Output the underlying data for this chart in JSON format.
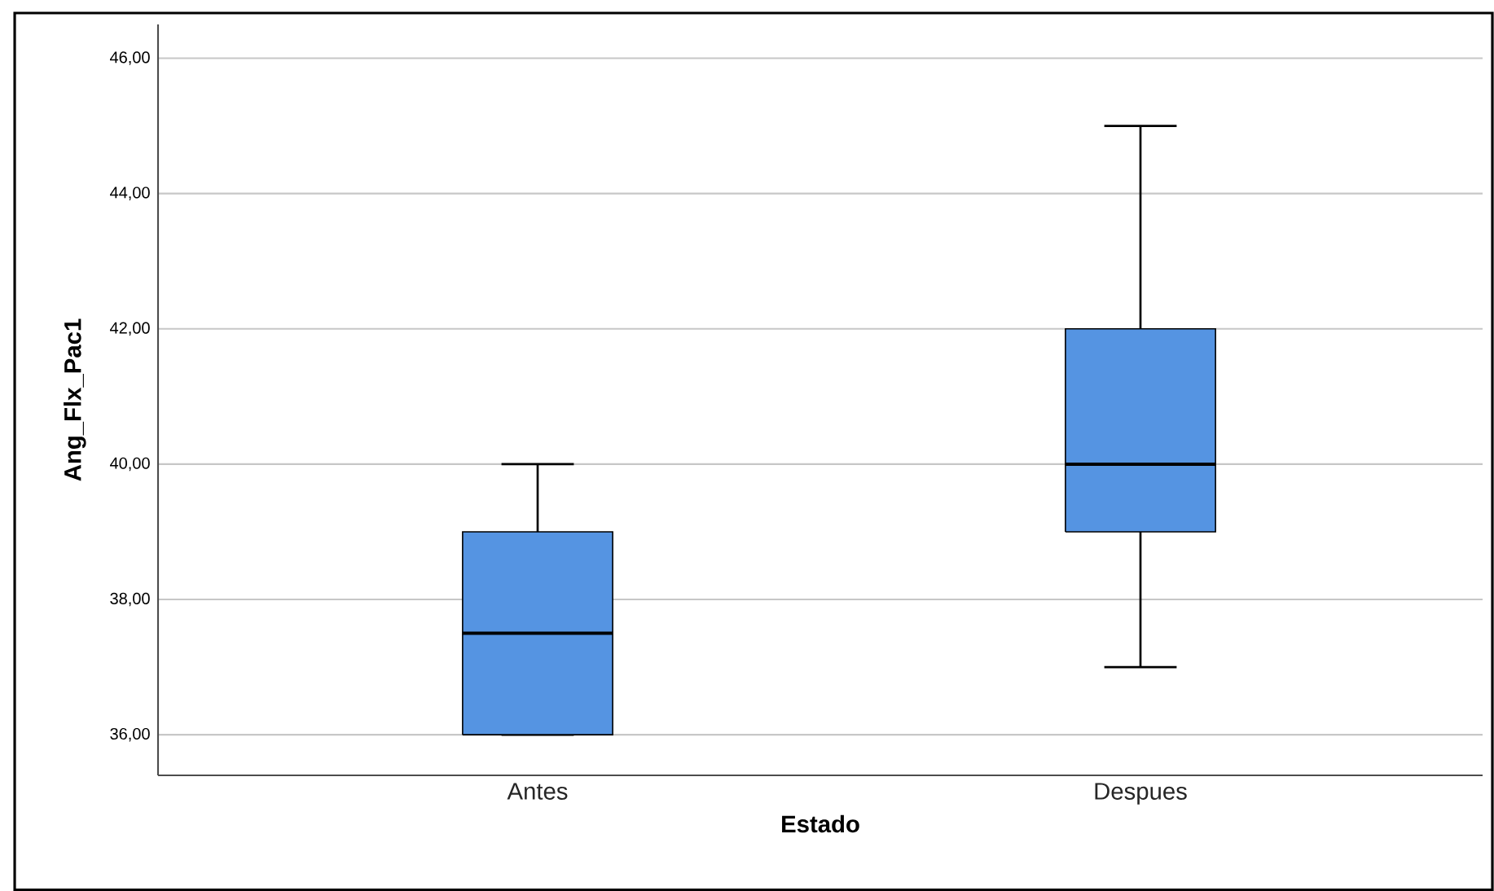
{
  "chart_data": {
    "type": "box",
    "xlabel": "Estado",
    "ylabel": "Ang_Flx_Pac1",
    "categories": [
      "Antes",
      "Despues"
    ],
    "boxes": [
      {
        "low": 36,
        "q1": 36,
        "median": 37.5,
        "q3": 39,
        "high": 40
      },
      {
        "low": 37,
        "q1": 39,
        "median": 40,
        "q3": 42,
        "high": 45
      }
    ],
    "color": "#5594e2",
    "ylim": [
      35.4,
      46.5
    ],
    "yticks": [
      {
        "value": 36,
        "label": "36,00"
      },
      {
        "value": 38,
        "label": "38,00"
      },
      {
        "value": 40,
        "label": "40,00"
      },
      {
        "value": 42,
        "label": "42,00"
      },
      {
        "value": 44,
        "label": "44,00"
      },
      {
        "value": 46,
        "label": "46,00"
      }
    ],
    "grid": "y"
  }
}
